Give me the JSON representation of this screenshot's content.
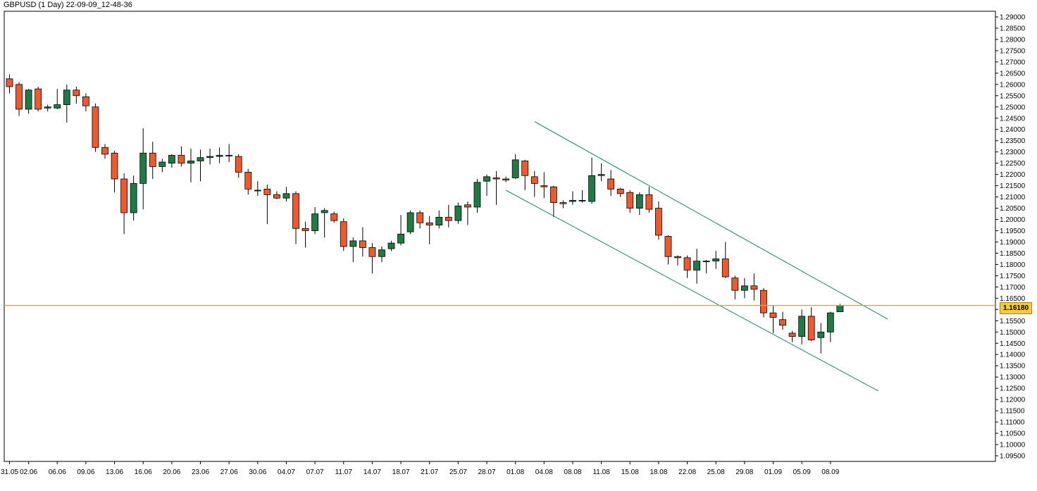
{
  "header": {
    "title": "GBPUSD (1 Day) 22-09-09_12-48-36"
  },
  "current_price": {
    "value": 1.1618,
    "label": "1.16180",
    "color": "#e8a800"
  },
  "colors": {
    "bull": "#1e7b45",
    "bear": "#ec5a2e",
    "wick": "#000000",
    "channel": "#1a8a6a",
    "background": "#ffffff",
    "axis": "#000000"
  },
  "chart_data": {
    "type": "candlestick",
    "title": "GBPUSD (1 Day) 22-09-09_12-48-36",
    "ylim": [
      1.0925,
      1.2925
    ],
    "y_ticks": [
      "1.29000",
      "1.28500",
      "1.28000",
      "1.27500",
      "1.27000",
      "1.26500",
      "1.26000",
      "1.25500",
      "1.25000",
      "1.24500",
      "1.24000",
      "1.23500",
      "1.23000",
      "1.22500",
      "1.22000",
      "1.21500",
      "1.21000",
      "1.20500",
      "1.20000",
      "1.19500",
      "1.19000",
      "1.18500",
      "1.18000",
      "1.17500",
      "1.17000",
      "1.16500",
      "1.16000",
      "1.15500",
      "1.15000",
      "1.14500",
      "1.14000",
      "1.13500",
      "1.13000",
      "1.12500",
      "1.12000",
      "1.11500",
      "1.11000",
      "1.10500",
      "1.10000",
      "1.09500"
    ],
    "x_ticks": [
      {
        "label": "31.05",
        "index": 0
      },
      {
        "label": "02.06",
        "index": 2
      },
      {
        "label": "06.06",
        "index": 5
      },
      {
        "label": "09.06",
        "index": 8
      },
      {
        "label": "13.06",
        "index": 11
      },
      {
        "label": "16.06",
        "index": 14
      },
      {
        "label": "20.06",
        "index": 17
      },
      {
        "label": "23.06",
        "index": 20
      },
      {
        "label": "27.06",
        "index": 23
      },
      {
        "label": "30.06",
        "index": 26
      },
      {
        "label": "04.07",
        "index": 29
      },
      {
        "label": "07.07",
        "index": 32
      },
      {
        "label": "11.07",
        "index": 35
      },
      {
        "label": "14.07",
        "index": 38
      },
      {
        "label": "18.07",
        "index": 41
      },
      {
        "label": "21.07",
        "index": 44
      },
      {
        "label": "25.07",
        "index": 47
      },
      {
        "label": "28.07",
        "index": 50
      },
      {
        "label": "01.08",
        "index": 53
      },
      {
        "label": "04.08",
        "index": 56
      },
      {
        "label": "08.08",
        "index": 59
      },
      {
        "label": "11.08",
        "index": 62
      },
      {
        "label": "15.08",
        "index": 65
      },
      {
        "label": "18.08",
        "index": 68
      },
      {
        "label": "22.08",
        "index": 71
      },
      {
        "label": "25.08",
        "index": 74
      },
      {
        "label": "29.08",
        "index": 77
      },
      {
        "label": "01.09",
        "index": 80
      },
      {
        "label": "05.09",
        "index": 83
      },
      {
        "label": "08.09",
        "index": 86
      }
    ],
    "candles": [
      {
        "o": 1.2625,
        "h": 1.2645,
        "l": 1.256,
        "c": 1.259
      },
      {
        "o": 1.26,
        "h": 1.261,
        "l": 1.246,
        "c": 1.249
      },
      {
        "o": 1.249,
        "h": 1.258,
        "l": 1.247,
        "c": 1.2575
      },
      {
        "o": 1.258,
        "h": 1.259,
        "l": 1.248,
        "c": 1.249
      },
      {
        "o": 1.2495,
        "h": 1.251,
        "l": 1.248,
        "c": 1.25
      },
      {
        "o": 1.2495,
        "h": 1.258,
        "l": 1.249,
        "c": 1.251
      },
      {
        "o": 1.251,
        "h": 1.26,
        "l": 1.243,
        "c": 1.2575
      },
      {
        "o": 1.2575,
        "h": 1.259,
        "l": 1.2515,
        "c": 1.255
      },
      {
        "o": 1.2545,
        "h": 1.256,
        "l": 1.248,
        "c": 1.2505
      },
      {
        "o": 1.25,
        "h": 1.2515,
        "l": 1.23,
        "c": 1.232
      },
      {
        "o": 1.232,
        "h": 1.2335,
        "l": 1.227,
        "c": 1.229
      },
      {
        "o": 1.2295,
        "h": 1.2305,
        "l": 1.212,
        "c": 1.218
      },
      {
        "o": 1.218,
        "h": 1.2205,
        "l": 1.1935,
        "c": 1.203
      },
      {
        "o": 1.203,
        "h": 1.2195,
        "l": 1.1995,
        "c": 1.216
      },
      {
        "o": 1.216,
        "h": 1.2405,
        "l": 1.2045,
        "c": 1.2295
      },
      {
        "o": 1.2295,
        "h": 1.2345,
        "l": 1.218,
        "c": 1.2235
      },
      {
        "o": 1.2235,
        "h": 1.227,
        "l": 1.221,
        "c": 1.2255
      },
      {
        "o": 1.225,
        "h": 1.229,
        "l": 1.223,
        "c": 1.2285
      },
      {
        "o": 1.2285,
        "h": 1.2325,
        "l": 1.2235,
        "c": 1.225
      },
      {
        "o": 1.225,
        "h": 1.2315,
        "l": 1.2165,
        "c": 1.226
      },
      {
        "o": 1.226,
        "h": 1.231,
        "l": 1.217,
        "c": 1.2275
      },
      {
        "o": 1.2275,
        "h": 1.2315,
        "l": 1.2245,
        "c": 1.228
      },
      {
        "o": 1.228,
        "h": 1.232,
        "l": 1.225,
        "c": 1.2285
      },
      {
        "o": 1.2282,
        "h": 1.2335,
        "l": 1.2255,
        "c": 1.2285
      },
      {
        "o": 1.228,
        "h": 1.229,
        "l": 1.2185,
        "c": 1.221
      },
      {
        "o": 1.221,
        "h": 1.2225,
        "l": 1.211,
        "c": 1.2135
      },
      {
        "o": 1.213,
        "h": 1.217,
        "l": 1.2105,
        "c": 1.213
      },
      {
        "o": 1.2135,
        "h": 1.2155,
        "l": 1.198,
        "c": 1.211
      },
      {
        "o": 1.211,
        "h": 1.2125,
        "l": 1.209,
        "c": 1.2095
      },
      {
        "o": 1.2095,
        "h": 1.2145,
        "l": 1.208,
        "c": 1.2115
      },
      {
        "o": 1.2115,
        "h": 1.2125,
        "l": 1.189,
        "c": 1.196
      },
      {
        "o": 1.196,
        "h": 1.199,
        "l": 1.1875,
        "c": 1.195
      },
      {
        "o": 1.195,
        "h": 1.2055,
        "l": 1.1935,
        "c": 1.2025
      },
      {
        "o": 1.203,
        "h": 1.205,
        "l": 1.192,
        "c": 1.204
      },
      {
        "o": 1.2025,
        "h": 1.2035,
        "l": 1.1985,
        "c": 1.1995
      },
      {
        "o": 1.199,
        "h": 1.2005,
        "l": 1.186,
        "c": 1.188
      },
      {
        "o": 1.188,
        "h": 1.192,
        "l": 1.181,
        "c": 1.1905
      },
      {
        "o": 1.1905,
        "h": 1.1965,
        "l": 1.1835,
        "c": 1.1875
      },
      {
        "o": 1.1875,
        "h": 1.1895,
        "l": 1.176,
        "c": 1.1835
      },
      {
        "o": 1.1835,
        "h": 1.188,
        "l": 1.181,
        "c": 1.1865
      },
      {
        "o": 1.187,
        "h": 1.1905,
        "l": 1.186,
        "c": 1.1895
      },
      {
        "o": 1.1895,
        "h": 1.202,
        "l": 1.1885,
        "c": 1.1935
      },
      {
        "o": 1.1945,
        "h": 1.204,
        "l": 1.1935,
        "c": 1.203
      },
      {
        "o": 1.203,
        "h": 1.204,
        "l": 1.196,
        "c": 1.1985
      },
      {
        "o": 1.1985,
        "h": 1.2015,
        "l": 1.189,
        "c": 1.1975
      },
      {
        "o": 1.1975,
        "h": 1.204,
        "l": 1.196,
        "c": 1.201
      },
      {
        "o": 1.201,
        "h": 1.2065,
        "l": 1.1965,
        "c": 1.1995
      },
      {
        "o": 1.1995,
        "h": 1.2075,
        "l": 1.198,
        "c": 1.206
      },
      {
        "o": 1.2065,
        "h": 1.208,
        "l": 1.1975,
        "c": 1.2055
      },
      {
        "o": 1.2055,
        "h": 1.218,
        "l": 1.203,
        "c": 1.2165
      },
      {
        "o": 1.217,
        "h": 1.22,
        "l": 1.2105,
        "c": 1.219
      },
      {
        "o": 1.2185,
        "h": 1.2215,
        "l": 1.2065,
        "c": 1.218
      },
      {
        "o": 1.218,
        "h": 1.219,
        "l": 1.2165,
        "c": 1.2175
      },
      {
        "o": 1.2185,
        "h": 1.229,
        "l": 1.218,
        "c": 1.2265
      },
      {
        "o": 1.226,
        "h": 1.2265,
        "l": 1.213,
        "c": 1.2195
      },
      {
        "o": 1.219,
        "h": 1.2215,
        "l": 1.21,
        "c": 1.216
      },
      {
        "o": 1.215,
        "h": 1.221,
        "l": 1.2095,
        "c": 1.2145
      },
      {
        "o": 1.2145,
        "h": 1.215,
        "l": 1.201,
        "c": 1.2075
      },
      {
        "o": 1.2075,
        "h": 1.2085,
        "l": 1.205,
        "c": 1.207
      },
      {
        "o": 1.208,
        "h": 1.2125,
        "l": 1.2065,
        "c": 1.2085
      },
      {
        "o": 1.2085,
        "h": 1.213,
        "l": 1.2075,
        "c": 1.2085
      },
      {
        "o": 1.208,
        "h": 1.2275,
        "l": 1.207,
        "c": 1.2195
      },
      {
        "o": 1.2195,
        "h": 1.225,
        "l": 1.217,
        "c": 1.22
      },
      {
        "o": 1.218,
        "h": 1.222,
        "l": 1.2105,
        "c": 1.2135
      },
      {
        "o": 1.2135,
        "h": 1.214,
        "l": 1.21,
        "c": 1.2115
      },
      {
        "o": 1.212,
        "h": 1.213,
        "l": 1.203,
        "c": 1.205
      },
      {
        "o": 1.205,
        "h": 1.212,
        "l": 1.202,
        "c": 1.211
      },
      {
        "o": 1.211,
        "h": 1.2145,
        "l": 1.203,
        "c": 1.2045
      },
      {
        "o": 1.205,
        "h": 1.208,
        "l": 1.191,
        "c": 1.193
      },
      {
        "o": 1.1925,
        "h": 1.193,
        "l": 1.18,
        "c": 1.1835
      },
      {
        "o": 1.1835,
        "h": 1.184,
        "l": 1.1795,
        "c": 1.183
      },
      {
        "o": 1.183,
        "h": 1.184,
        "l": 1.174,
        "c": 1.1775
      },
      {
        "o": 1.1775,
        "h": 1.187,
        "l": 1.1715,
        "c": 1.1815
      },
      {
        "o": 1.1815,
        "h": 1.182,
        "l": 1.176,
        "c": 1.1815
      },
      {
        "o": 1.1815,
        "h": 1.186,
        "l": 1.178,
        "c": 1.1825
      },
      {
        "o": 1.1825,
        "h": 1.19,
        "l": 1.174,
        "c": 1.1745
      },
      {
        "o": 1.174,
        "h": 1.175,
        "l": 1.1645,
        "c": 1.1685
      },
      {
        "o": 1.1685,
        "h": 1.174,
        "l": 1.165,
        "c": 1.1705
      },
      {
        "o": 1.1705,
        "h": 1.176,
        "l": 1.164,
        "c": 1.169
      },
      {
        "o": 1.1685,
        "h": 1.1695,
        "l": 1.1565,
        "c": 1.1585
      },
      {
        "o": 1.1585,
        "h": 1.162,
        "l": 1.1495,
        "c": 1.1565
      },
      {
        "o": 1.1555,
        "h": 1.159,
        "l": 1.151,
        "c": 1.153
      },
      {
        "o": 1.1495,
        "h": 1.1505,
        "l": 1.1455,
        "c": 1.148
      },
      {
        "o": 1.148,
        "h": 1.16,
        "l": 1.1445,
        "c": 1.157
      },
      {
        "o": 1.157,
        "h": 1.161,
        "l": 1.146,
        "c": 1.1465
      },
      {
        "o": 1.1475,
        "h": 1.154,
        "l": 1.1405,
        "c": 1.15
      },
      {
        "o": 1.15,
        "h": 1.159,
        "l": 1.1455,
        "c": 1.1585
      },
      {
        "o": 1.159,
        "h": 1.1625,
        "l": 1.159,
        "c": 1.1618
      }
    ],
    "channel_lines": [
      {
        "name": "upper",
        "x0_index": 55.0,
        "y0": 1.2435,
        "x1_index": 92.0,
        "y1": 1.1557
      },
      {
        "name": "lower",
        "x0_index": 52.0,
        "y0": 1.213,
        "x1_index": 91.0,
        "y1": 1.1238
      }
    ],
    "hline": {
      "value": 1.1618
    }
  }
}
